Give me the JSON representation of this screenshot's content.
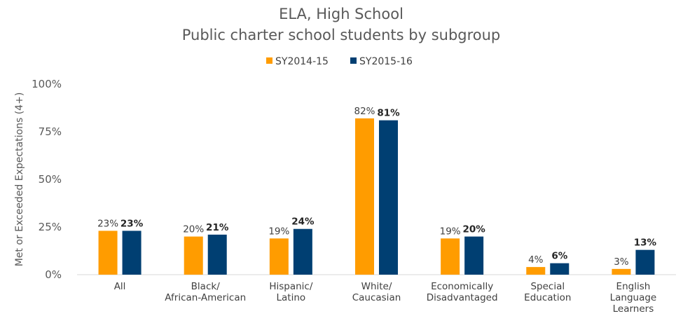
{
  "chart_data": {
    "type": "bar",
    "title": [
      "ELA, High School",
      "Public charter school students by subgroup"
    ],
    "ylabel": "Met or Exceeded Expectations (4+)",
    "ylim": [
      0,
      100
    ],
    "yticks": [
      "0%",
      "25%",
      "50%",
      "75%",
      "100%"
    ],
    "ytick_values": [
      0,
      25,
      50,
      75,
      100
    ],
    "grid": false,
    "legend_position": "top",
    "categories": [
      [
        "All"
      ],
      [
        "Black/",
        "African-American"
      ],
      [
        "Hispanic/",
        "Latino"
      ],
      [
        "White/",
        "Caucasian"
      ],
      [
        "Economically",
        "Disadvantaged"
      ],
      [
        "Special",
        "Education"
      ],
      [
        "English",
        "Language",
        "Learners"
      ]
    ],
    "series": [
      {
        "name": "SY2014-15",
        "color": "#ff9c00",
        "values": [
          23,
          20,
          19,
          82,
          19,
          4,
          3
        ],
        "labels": [
          "23%",
          "20%",
          "19%",
          "82%",
          "19%",
          "4%",
          "3%"
        ],
        "label_bold": false
      },
      {
        "name": "SY2015-16",
        "color": "#003f72",
        "values": [
          23,
          21,
          24,
          81,
          20,
          6,
          13
        ],
        "labels": [
          "23%",
          "21%",
          "24%",
          "81%",
          "20%",
          "6%",
          "13%"
        ],
        "label_bold": true
      }
    ]
  }
}
